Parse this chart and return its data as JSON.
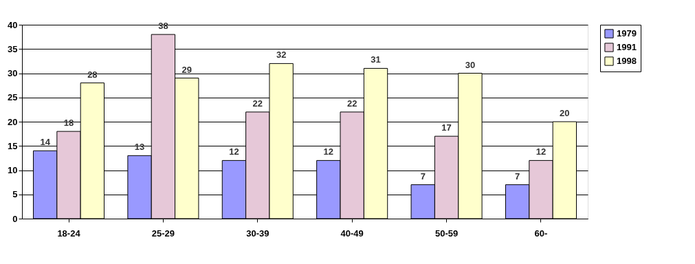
{
  "chart_data": {
    "type": "bar",
    "categories": [
      "18-24",
      "25-29",
      "30-39",
      "40-49",
      "50-59",
      "60-"
    ],
    "series": [
      {
        "name": "1979",
        "color": "#9999ff",
        "values": [
          14,
          13,
          12,
          12,
          7,
          7
        ]
      },
      {
        "name": "1991",
        "color": "#e6c8d8",
        "values": [
          18,
          38,
          22,
          22,
          17,
          12
        ]
      },
      {
        "name": "1998",
        "color": "#ffffcc",
        "values": [
          28,
          29,
          32,
          31,
          30,
          20
        ]
      }
    ],
    "ylim": [
      0,
      40
    ],
    "yticks": [
      0,
      5,
      10,
      15,
      20,
      25,
      30,
      35,
      40
    ],
    "grid": "y",
    "legend": "right",
    "data_labels": true
  }
}
